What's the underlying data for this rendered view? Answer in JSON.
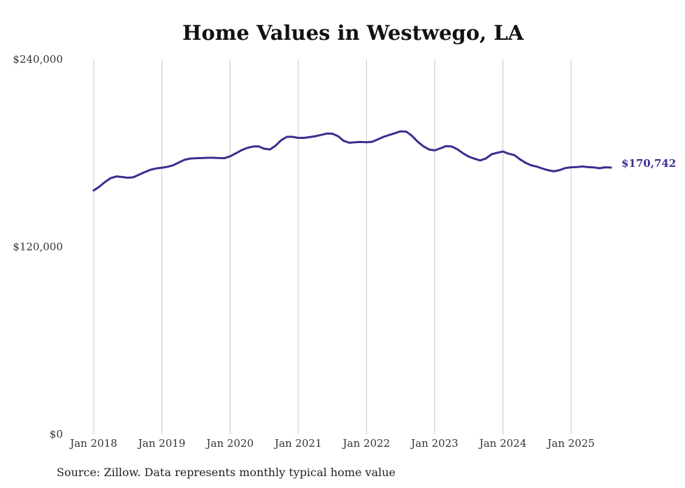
{
  "chart_data": {
    "type": "line",
    "title": "Home Values in Westwego, LA",
    "xlabel": "",
    "ylabel": "",
    "ylim": [
      0,
      240000
    ],
    "y_ticks": [
      "$0",
      "$120,000",
      "$240,000"
    ],
    "y_tick_values": [
      0,
      120000,
      240000
    ],
    "x_ticks": [
      "Jan 2018",
      "Jan 2019",
      "Jan 2020",
      "Jan 2021",
      "Jan 2022",
      "Jan 2023",
      "Jan 2024",
      "Jan 2025"
    ],
    "x_tick_values": [
      "2018-01",
      "2019-01",
      "2020-01",
      "2021-01",
      "2022-01",
      "2023-01",
      "2024-01",
      "2025-01"
    ],
    "grid": "vertical",
    "line_color": "#3b2f8f",
    "end_label": "$170,742",
    "series": [
      {
        "x": [
          "2018-01",
          "2018-02",
          "2018-03",
          "2018-04",
          "2018-05",
          "2018-06",
          "2018-07",
          "2018-08",
          "2018-09",
          "2018-10",
          "2018-11",
          "2018-12",
          "2019-01",
          "2019-02",
          "2019-03",
          "2019-04",
          "2019-05",
          "2019-06",
          "2019-07",
          "2019-08",
          "2019-09",
          "2019-10",
          "2019-11",
          "2019-12",
          "2020-01",
          "2020-02",
          "2020-03",
          "2020-04",
          "2020-05",
          "2020-06",
          "2020-07",
          "2020-08",
          "2020-09",
          "2020-10",
          "2020-11",
          "2020-12",
          "2021-01",
          "2021-02",
          "2021-03",
          "2021-04",
          "2021-05",
          "2021-06",
          "2021-07",
          "2021-08",
          "2021-09",
          "2021-10",
          "2021-11",
          "2021-12",
          "2022-01",
          "2022-02",
          "2022-03",
          "2022-04",
          "2022-05",
          "2022-06",
          "2022-07",
          "2022-08",
          "2022-09",
          "2022-10",
          "2022-11",
          "2022-12",
          "2023-01",
          "2023-02",
          "2023-03",
          "2023-04",
          "2023-05",
          "2023-06",
          "2023-07",
          "2023-08",
          "2023-09",
          "2023-10",
          "2023-11",
          "2023-12",
          "2024-01",
          "2024-02",
          "2024-03",
          "2024-04",
          "2024-05",
          "2024-06",
          "2024-07",
          "2024-08",
          "2024-09",
          "2024-10",
          "2024-11",
          "2024-12",
          "2025-01",
          "2025-02",
          "2025-03",
          "2025-04",
          "2025-05",
          "2025-06",
          "2025-07",
          "2025-08"
        ],
        "values": [
          156000,
          158500,
          161500,
          164000,
          165000,
          164700,
          164200,
          164500,
          166200,
          167800,
          169300,
          170200,
          170600,
          171200,
          172200,
          174000,
          175700,
          176500,
          176700,
          176800,
          177000,
          177000,
          176800,
          176700,
          177900,
          179800,
          181800,
          183300,
          184200,
          184300,
          182800,
          182300,
          184700,
          188300,
          190400,
          190400,
          189700,
          189700,
          190200,
          190800,
          191600,
          192500,
          192400,
          190800,
          187800,
          186600,
          186900,
          187100,
          186900,
          187200,
          188800,
          190400,
          191600,
          192700,
          193900,
          193700,
          191000,
          187300,
          184400,
          182300,
          181700,
          183000,
          184500,
          184200,
          182400,
          179800,
          177700,
          176400,
          175300,
          176500,
          179200,
          180200,
          181000,
          179600,
          178700,
          176000,
          173700,
          172100,
          171300,
          170000,
          169000,
          168300,
          169100,
          170400,
          170900,
          171100,
          171400,
          171000,
          170800,
          170300,
          170900,
          170742
        ]
      }
    ]
  },
  "source_note": "Source: Zillow. Data represents monthly typical home value"
}
